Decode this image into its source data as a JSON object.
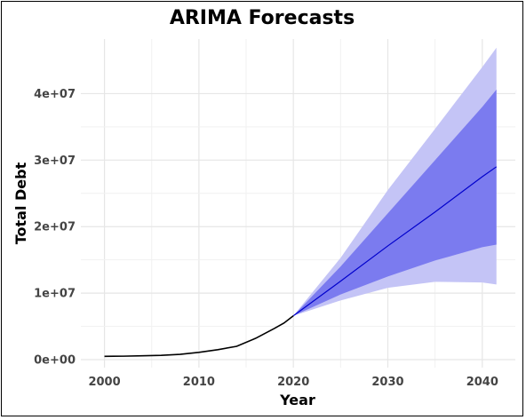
{
  "chart_data": {
    "type": "line",
    "title": "ARIMA Forecasts",
    "xlabel": "Year",
    "ylabel": "Total Debt",
    "xlim": [
      1997.5,
      2043.5
    ],
    "ylim": [
      -1200000,
      48200000
    ],
    "x_ticks": [
      2000,
      2010,
      2020,
      2030,
      2040
    ],
    "x_tick_labels": [
      "2000",
      "2010",
      "2020",
      "2030",
      "2040"
    ],
    "y_ticks": [
      0,
      10000000,
      20000000,
      30000000,
      40000000
    ],
    "y_tick_labels": [
      "0e+00",
      "1e+07",
      "2e+07",
      "3e+07",
      "4e+07"
    ],
    "grid": true,
    "series": [
      {
        "role": "history",
        "color": "#000000",
        "x": [
          2000,
          2002,
          2004,
          2006,
          2008,
          2010,
          2012,
          2014,
          2016,
          2018,
          2019,
          2020
        ],
        "y": [
          500000,
          520000,
          580000,
          650000,
          800000,
          1100000,
          1500000,
          2000000,
          3200000,
          4700000,
          5500000,
          6600000
        ]
      },
      {
        "role": "forecast-mean",
        "color": "#0000cc",
        "x": [
          2020,
          2025,
          2030,
          2035,
          2040,
          2041.5
        ],
        "y": [
          6600000,
          11800000,
          17100000,
          22200000,
          27500000,
          29000000
        ]
      },
      {
        "role": "interval-80",
        "color": "#7b7bef",
        "x": [
          2020,
          2025,
          2030,
          2035,
          2040,
          2041.5
        ],
        "lower": [
          6600000,
          9800000,
          12500000,
          14900000,
          16900000,
          17300000
        ],
        "upper": [
          6600000,
          14000000,
          22000000,
          30000000,
          38000000,
          40600000
        ]
      },
      {
        "role": "interval-95",
        "color": "#c4c4f6",
        "x": [
          2020,
          2025,
          2030,
          2035,
          2040,
          2041.5
        ],
        "lower": [
          6600000,
          8900000,
          10800000,
          11700000,
          11600000,
          11300000
        ],
        "upper": [
          6600000,
          15300000,
          25500000,
          34700000,
          44000000,
          46900000
        ]
      }
    ]
  }
}
